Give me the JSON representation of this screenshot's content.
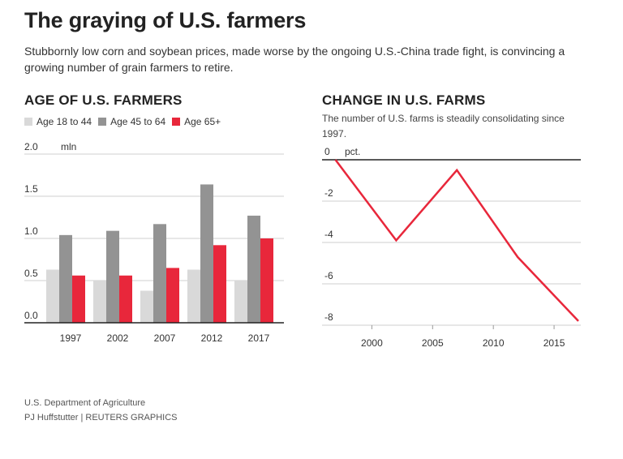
{
  "header": {
    "title": "The graying of U.S. farmers",
    "subtitle": "Stubbornly low corn and soybean prices, made worse by the ongoing U.S.-China trade fight, is convincing a growing number of grain farmers to retire."
  },
  "footer": {
    "source": "U.S. Department of Agriculture",
    "credit": "PJ Huffstutter  | REUTERS GRAPHICS"
  },
  "chart_data": [
    {
      "type": "bar",
      "title": "AGE OF U.S. FARMERS",
      "unit_label": "mln",
      "categories": [
        "1997",
        "2002",
        "2007",
        "2012",
        "2017"
      ],
      "series": [
        {
          "name": "Age 18 to 44",
          "color": "#d9d9d9",
          "values": [
            0.63,
            0.5,
            0.38,
            0.63,
            0.5
          ]
        },
        {
          "name": "Age 45 to 64",
          "color": "#939393",
          "values": [
            1.04,
            1.09,
            1.17,
            1.64,
            1.27
          ]
        },
        {
          "name": "Age 65+",
          "color": "#e8273b",
          "values": [
            0.56,
            0.56,
            0.65,
            0.92,
            1.0
          ]
        }
      ],
      "ylim": [
        0,
        2.0
      ],
      "yticks": [
        "0.0",
        "0.5",
        "1.0",
        "1.5",
        "2.0"
      ],
      "grid": true,
      "legend": "top-left"
    },
    {
      "type": "line",
      "title": "CHANGE IN U.S. FARMS",
      "subtitle": "The number of U.S. farms is steadily consolidating since 1997.",
      "unit_label": "pct.",
      "x": [
        1997,
        2002,
        2007,
        2012,
        2017
      ],
      "series": [
        {
          "color": "#e8273b",
          "values": [
            0,
            -3.9,
            -0.5,
            -4.7,
            -7.8
          ]
        }
      ],
      "xlim": [
        1995.9,
        2017.2
      ],
      "ylim": [
        -8,
        0
      ],
      "xticks": [
        "2000",
        "2005",
        "2010",
        "2015"
      ],
      "yticks": [
        "0",
        "-2",
        "-4",
        "-6",
        "-8"
      ],
      "grid": true
    }
  ]
}
